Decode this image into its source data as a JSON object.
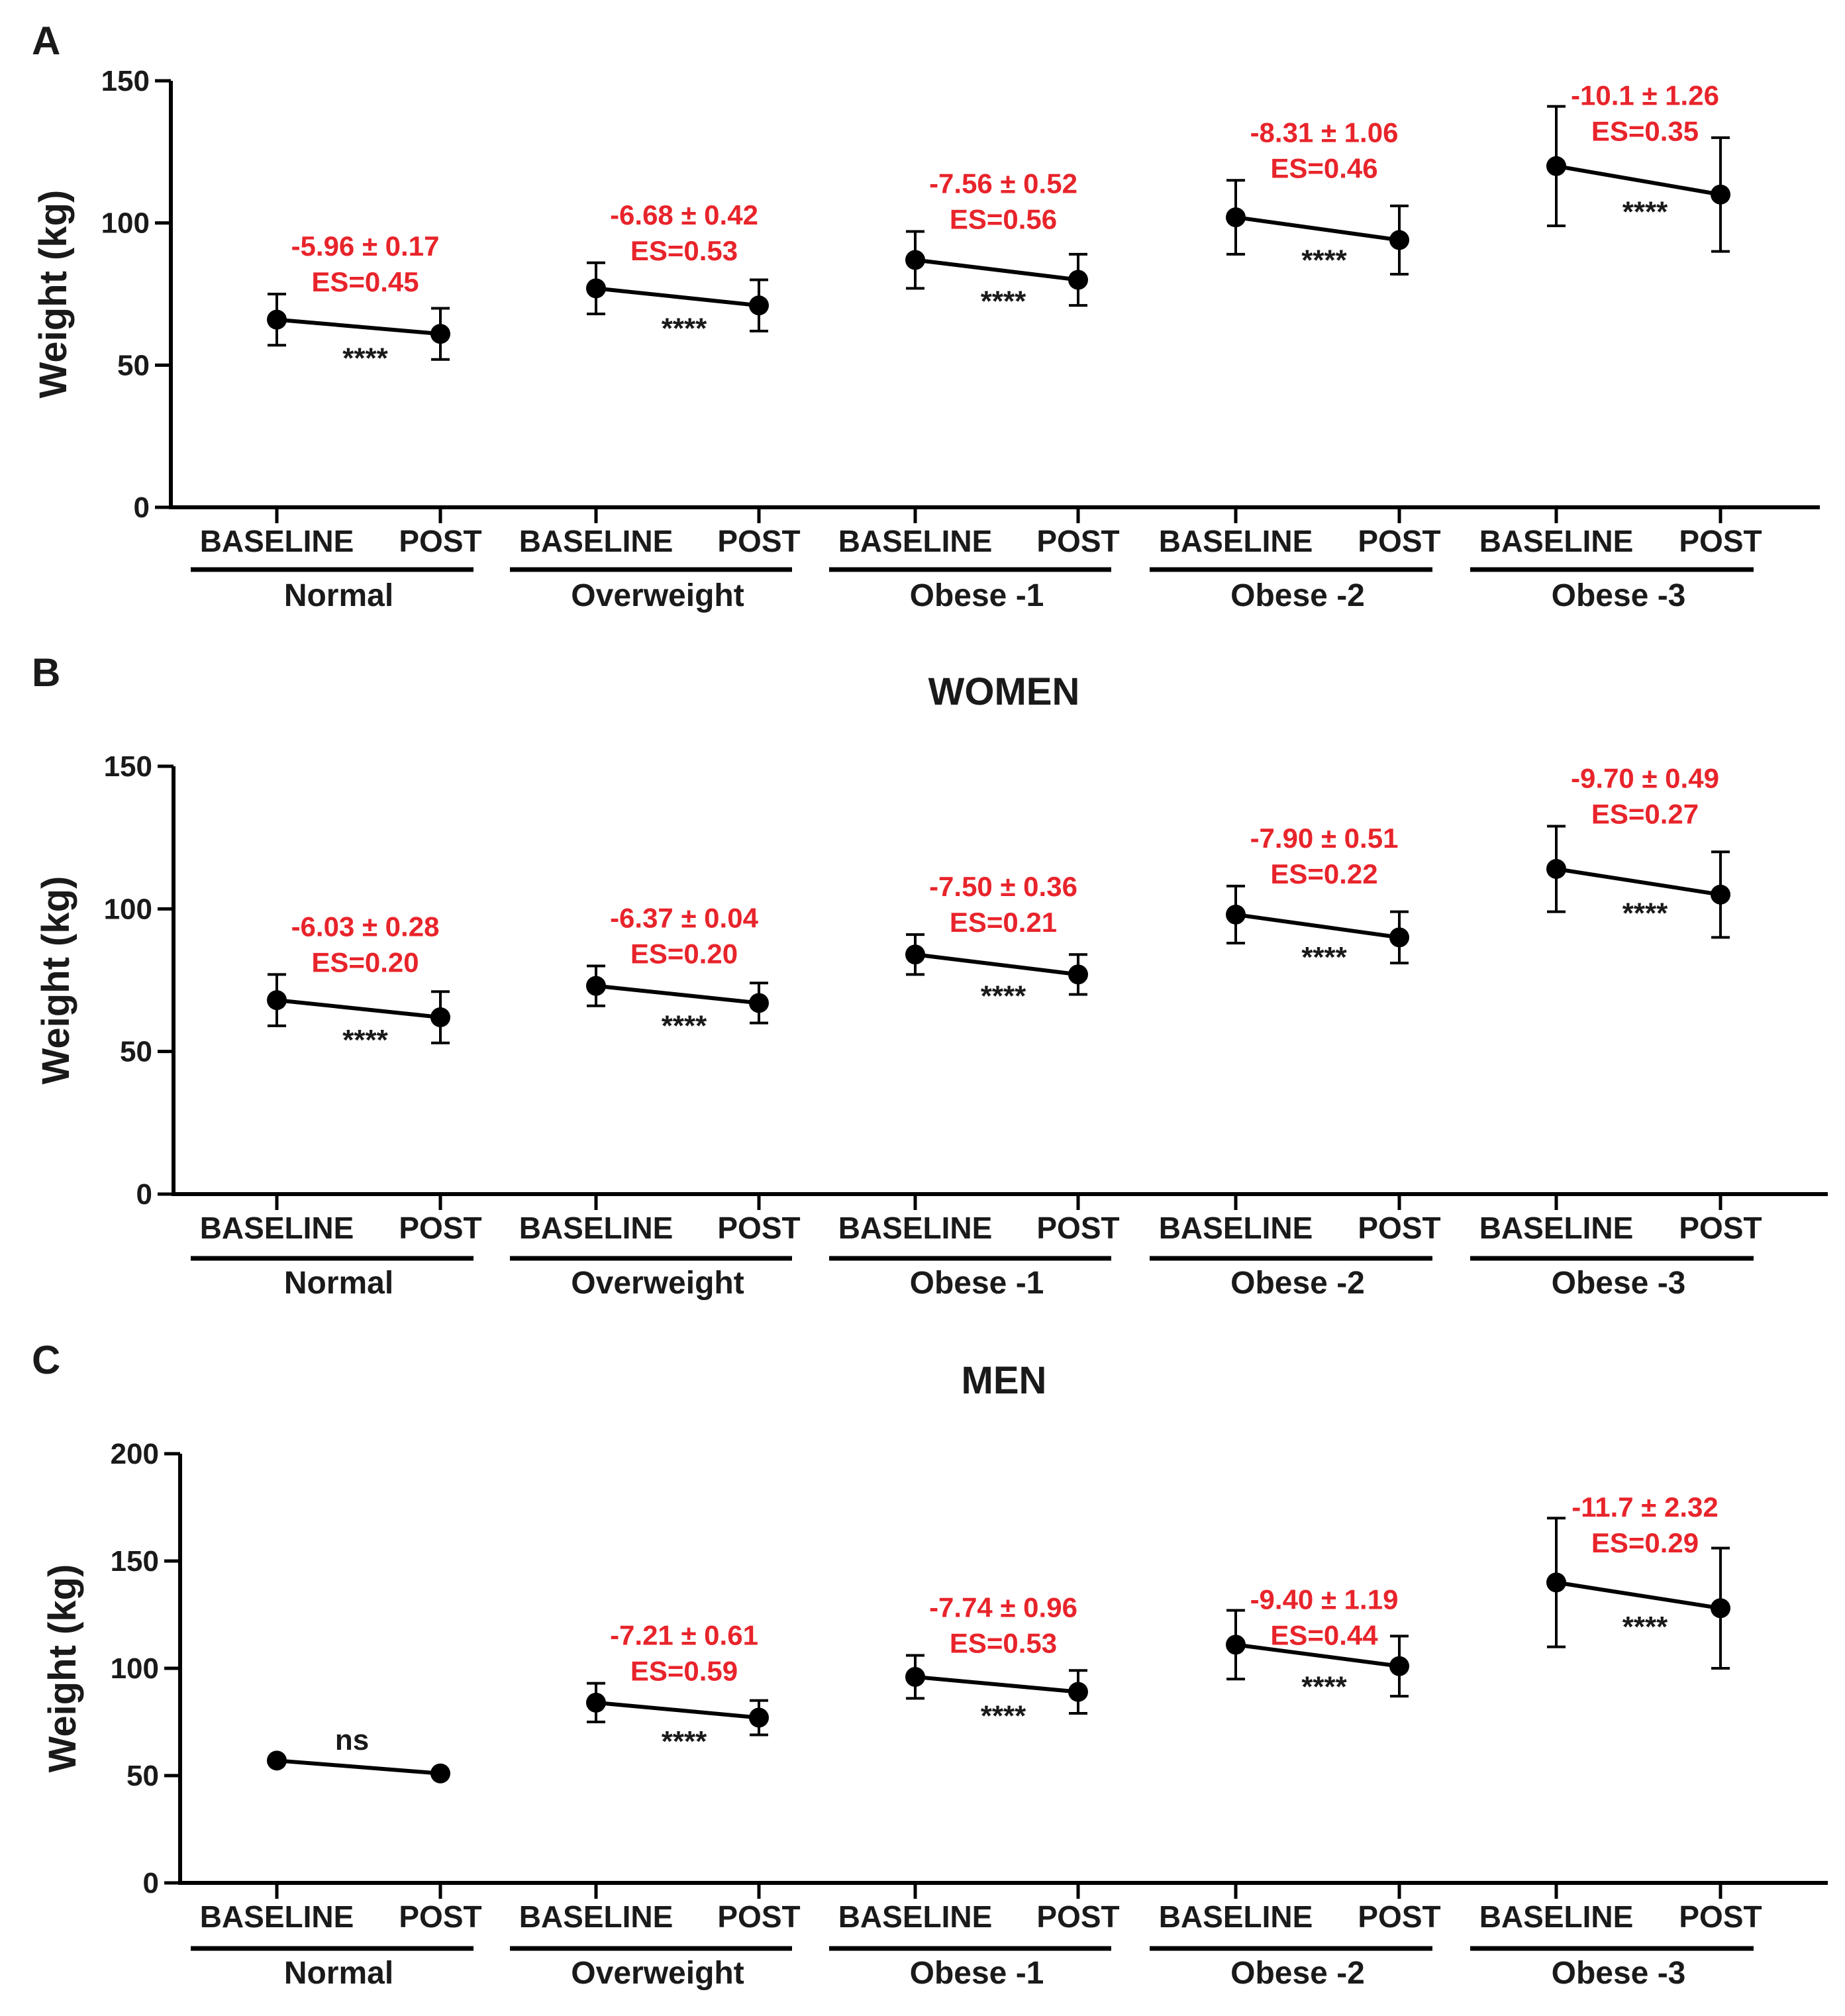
{
  "figure": {
    "colors": {
      "axis": "#000000",
      "annotation": "#e8242b",
      "text": "#1a1a1a"
    },
    "point_labels": [
      "BASELINE",
      "POST"
    ]
  },
  "chart_data": [
    {
      "type": "line",
      "panel": "A",
      "title": "",
      "ylabel": "Weight (kg)",
      "ylim": [
        0,
        150
      ],
      "yticks": [
        0,
        50,
        100,
        150
      ],
      "groups": [
        {
          "name": "Normal",
          "baseline": {
            "mean": 66,
            "err": 9
          },
          "post": {
            "mean": 61,
            "err": 9
          },
          "change": "-5.96 ± 0.17",
          "es": "ES=0.45",
          "sig": "****"
        },
        {
          "name": "Overweight",
          "baseline": {
            "mean": 77,
            "err": 9
          },
          "post": {
            "mean": 71,
            "err": 9
          },
          "change": "-6.68 ± 0.42",
          "es": "ES=0.53",
          "sig": "****"
        },
        {
          "name": "Obese -1",
          "baseline": {
            "mean": 87,
            "err": 10
          },
          "post": {
            "mean": 80,
            "err": 9
          },
          "change": "-7.56 ± 0.52",
          "es": "ES=0.56",
          "sig": "****"
        },
        {
          "name": "Obese -2",
          "baseline": {
            "mean": 102,
            "err": 13
          },
          "post": {
            "mean": 94,
            "err": 12
          },
          "change": "-8.31 ± 1.06",
          "es": "ES=0.46",
          "sig": "****"
        },
        {
          "name": "Obese -3",
          "baseline": {
            "mean": 120,
            "err": 21
          },
          "post": {
            "mean": 110,
            "err": 20
          },
          "change": "-10.1 ± 1.26",
          "es": "ES=0.35",
          "sig": "****"
        }
      ]
    },
    {
      "type": "line",
      "panel": "B",
      "title": "WOMEN",
      "ylabel": "Weight (kg)",
      "ylim": [
        0,
        150
      ],
      "yticks": [
        0,
        50,
        100,
        150
      ],
      "groups": [
        {
          "name": "Normal",
          "baseline": {
            "mean": 68,
            "err": 9
          },
          "post": {
            "mean": 62,
            "err": 9
          },
          "change": "-6.03 ± 0.28",
          "es": "ES=0.20",
          "sig": "****"
        },
        {
          "name": "Overweight",
          "baseline": {
            "mean": 73,
            "err": 7
          },
          "post": {
            "mean": 67,
            "err": 7
          },
          "change": "-6.37 ± 0.04",
          "es": "ES=0.20",
          "sig": "****"
        },
        {
          "name": "Obese -1",
          "baseline": {
            "mean": 84,
            "err": 7
          },
          "post": {
            "mean": 77,
            "err": 7
          },
          "change": "-7.50 ± 0.36",
          "es": "ES=0.21",
          "sig": "****"
        },
        {
          "name": "Obese -2",
          "baseline": {
            "mean": 98,
            "err": 10
          },
          "post": {
            "mean": 90,
            "err": 9
          },
          "change": "-7.90 ± 0.51",
          "es": "ES=0.22",
          "sig": "****"
        },
        {
          "name": "Obese -3",
          "baseline": {
            "mean": 114,
            "err": 15
          },
          "post": {
            "mean": 105,
            "err": 15
          },
          "change": "-9.70 ± 0.49",
          "es": "ES=0.27",
          "sig": "****"
        }
      ]
    },
    {
      "type": "line",
      "panel": "C",
      "title": "MEN",
      "ylabel": "Weight (kg)",
      "ylim": [
        0,
        200
      ],
      "yticks": [
        0,
        50,
        100,
        150,
        200
      ],
      "groups": [
        {
          "name": "Normal",
          "baseline": {
            "mean": 57,
            "err": 0
          },
          "post": {
            "mean": 51,
            "err": 0
          },
          "change": "",
          "es": "",
          "sig": "ns"
        },
        {
          "name": "Overweight",
          "baseline": {
            "mean": 84,
            "err": 9
          },
          "post": {
            "mean": 77,
            "err": 8
          },
          "change": "-7.21 ± 0.61",
          "es": "ES=0.59",
          "sig": "****"
        },
        {
          "name": "Obese -1",
          "baseline": {
            "mean": 96,
            "err": 10
          },
          "post": {
            "mean": 89,
            "err": 10
          },
          "change": "-7.74 ± 0.96",
          "es": "ES=0.53",
          "sig": "****"
        },
        {
          "name": "Obese -2",
          "baseline": {
            "mean": 111,
            "err": 16
          },
          "post": {
            "mean": 101,
            "err": 14
          },
          "change": "-9.40 ± 1.19",
          "es": "ES=0.44",
          "sig": "****"
        },
        {
          "name": "Obese -3",
          "baseline": {
            "mean": 140,
            "err": 30
          },
          "post": {
            "mean": 128,
            "err": 28
          },
          "change": "-11.7 ± 2.32",
          "es": "ES=0.29",
          "sig": "****"
        }
      ]
    }
  ]
}
